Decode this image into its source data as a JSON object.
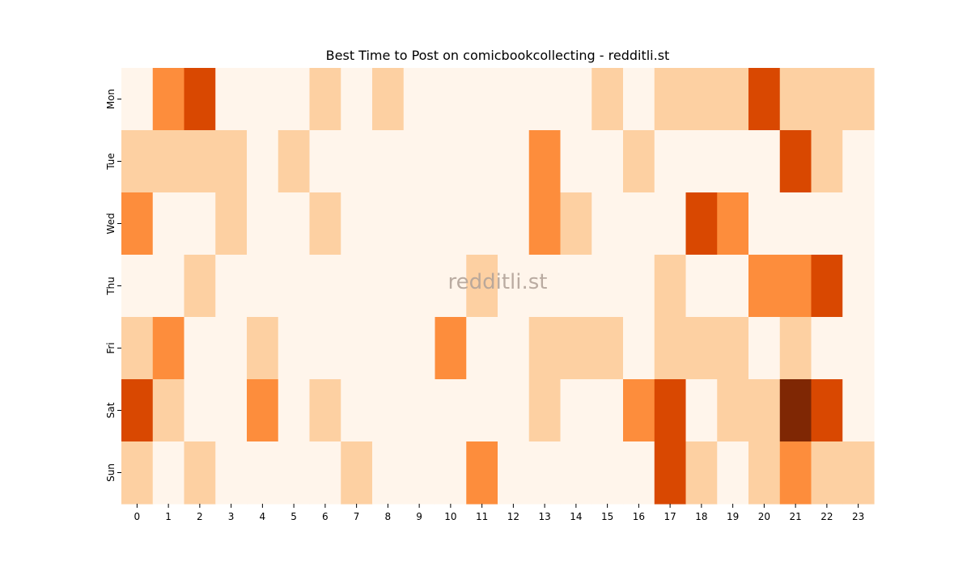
{
  "chart_data": {
    "type": "heatmap",
    "title": "Best Time to Post on comicbookcollecting - redditli.st",
    "watermark": "redditli.st",
    "xlabel": "",
    "ylabel": "",
    "x_categories": [
      "0",
      "1",
      "2",
      "3",
      "4",
      "5",
      "6",
      "7",
      "8",
      "9",
      "10",
      "11",
      "12",
      "13",
      "14",
      "15",
      "16",
      "17",
      "18",
      "19",
      "20",
      "21",
      "22",
      "23"
    ],
    "y_categories": [
      "Mon",
      "Tue",
      "Wed",
      "Thu",
      "Fri",
      "Sat",
      "Sun"
    ],
    "colormap": "Oranges",
    "value_range": [
      0,
      4
    ],
    "legend": "none",
    "values": [
      [
        0,
        2,
        3,
        0,
        0,
        0,
        1,
        0,
        1,
        0,
        0,
        0,
        0,
        0,
        0,
        1,
        0,
        1,
        1,
        1,
        3,
        1,
        1,
        1
      ],
      [
        1,
        1,
        1,
        1,
        0,
        1,
        0,
        0,
        0,
        0,
        0,
        0,
        0,
        2,
        0,
        0,
        1,
        0,
        0,
        0,
        0,
        3,
        1,
        0
      ],
      [
        2,
        0,
        0,
        1,
        0,
        0,
        1,
        0,
        0,
        0,
        0,
        0,
        0,
        2,
        1,
        0,
        0,
        0,
        3,
        2,
        0,
        0,
        0,
        0
      ],
      [
        0,
        0,
        1,
        0,
        0,
        0,
        0,
        0,
        0,
        0,
        0,
        1,
        0,
        0,
        0,
        0,
        0,
        1,
        0,
        0,
        2,
        2,
        3,
        0
      ],
      [
        1,
        2,
        0,
        0,
        1,
        0,
        0,
        0,
        0,
        0,
        2,
        0,
        0,
        1,
        1,
        1,
        0,
        1,
        1,
        1,
        0,
        1,
        0,
        0
      ],
      [
        3,
        1,
        0,
        0,
        2,
        0,
        1,
        0,
        0,
        0,
        0,
        0,
        0,
        1,
        0,
        0,
        2,
        3,
        0,
        1,
        1,
        4,
        3,
        0
      ],
      [
        1,
        0,
        1,
        0,
        0,
        0,
        0,
        1,
        0,
        0,
        0,
        2,
        0,
        0,
        0,
        0,
        0,
        3,
        1,
        0,
        1,
        2,
        1,
        1
      ]
    ],
    "level_colors": [
      "#fff5eb",
      "#fdd0a2",
      "#fd8d3c",
      "#d94801",
      "#7f2704"
    ]
  }
}
